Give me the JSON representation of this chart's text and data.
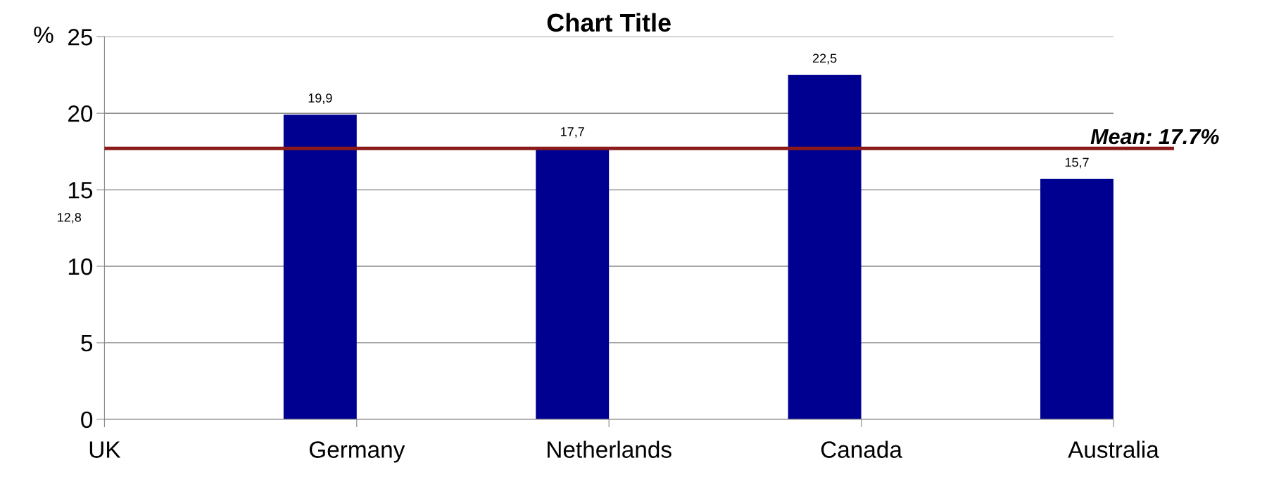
{
  "chart_data": {
    "type": "bar",
    "title": "Chart Title",
    "ylabel": "%",
    "categories": [
      "UK",
      "Germany",
      "Netherlands",
      "Canada",
      "Australia"
    ],
    "values": [
      null,
      19.9,
      17.7,
      22.5,
      15.7
    ],
    "value_labels": [
      null,
      "19,9",
      "17,7",
      "22,5",
      "15,7"
    ],
    "annotations": [
      "12,8"
    ],
    "color": "#000090",
    "ylim": [
      0,
      25
    ],
    "yticks": [
      0,
      5,
      10,
      15,
      20,
      25
    ],
    "grid": "y",
    "legend": false,
    "ref_lines": [
      {
        "axis": "y",
        "value": 17.7,
        "label": "Mean: 17.7%",
        "color": "#8b1a1a",
        "line_style": "solid"
      }
    ]
  }
}
